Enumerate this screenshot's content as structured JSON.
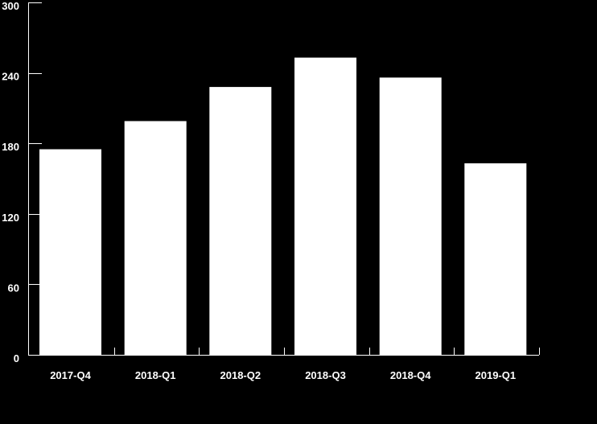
{
  "chart_data": {
    "type": "bar",
    "title": "",
    "xlabel": "",
    "ylabel": "",
    "categories": [
      "2017-Q4",
      "2018-Q1",
      "2018-Q2",
      "2018-Q3",
      "2018-Q4",
      "2019-Q1"
    ],
    "values": [
      175,
      199,
      228,
      253,
      236,
      163
    ],
    "ylim": [
      0,
      300
    ],
    "yticks": [
      "0",
      "60",
      "120",
      "180",
      "240",
      "300"
    ],
    "grid": false,
    "legend": "none",
    "colors": {
      "background": "#000000",
      "bar": "#ffffff",
      "axis": "#ffffff",
      "text": "#ffffff"
    }
  }
}
